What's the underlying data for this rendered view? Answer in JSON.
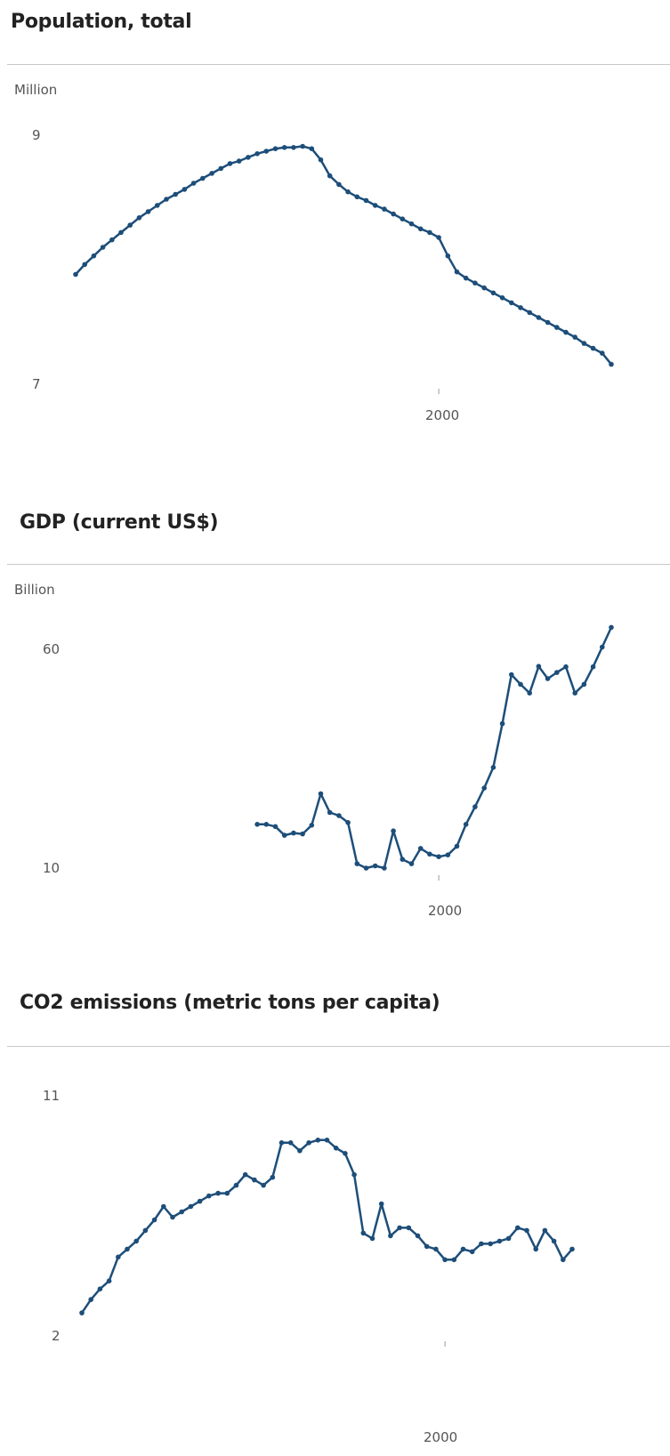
{
  "chart_data": [
    {
      "type": "line",
      "title": "Population, total",
      "unit": "Million",
      "x": [
        1960,
        1961,
        1962,
        1963,
        1964,
        1965,
        1966,
        1967,
        1968,
        1969,
        1970,
        1971,
        1972,
        1973,
        1974,
        1975,
        1976,
        1977,
        1978,
        1979,
        1980,
        1981,
        1982,
        1983,
        1984,
        1985,
        1986,
        1987,
        1988,
        1989,
        1990,
        1991,
        1992,
        1993,
        1994,
        1995,
        1996,
        1997,
        1998,
        1999,
        2000,
        2001,
        2002,
        2003,
        2004,
        2005,
        2006,
        2007,
        2008,
        2009,
        2010,
        2011,
        2012,
        2013,
        2014,
        2015,
        2016,
        2017,
        2018,
        2019
      ],
      "values": [
        7.87,
        7.95,
        8.02,
        8.09,
        8.15,
        8.21,
        8.27,
        8.33,
        8.38,
        8.43,
        8.48,
        8.52,
        8.56,
        8.61,
        8.65,
        8.69,
        8.73,
        8.77,
        8.79,
        8.82,
        8.85,
        8.87,
        8.89,
        8.9,
        8.9,
        8.91,
        8.89,
        8.8,
        8.67,
        8.6,
        8.54,
        8.5,
        8.47,
        8.43,
        8.4,
        8.36,
        8.32,
        8.28,
        8.24,
        8.21,
        8.17,
        8.02,
        7.89,
        7.84,
        7.8,
        7.76,
        7.72,
        7.68,
        7.64,
        7.6,
        7.56,
        7.52,
        7.48,
        7.44,
        7.4,
        7.36,
        7.31,
        7.27,
        7.23,
        7.14
      ],
      "yticks": [
        "9",
        "7"
      ],
      "xticks": [
        "2000"
      ],
      "ylim": [
        7,
        9
      ]
    },
    {
      "type": "line",
      "title": "GDP (current US$)",
      "unit": "Billion",
      "x": [
        1980,
        1981,
        1982,
        1983,
        1984,
        1985,
        1986,
        1987,
        1988,
        1989,
        1990,
        1991,
        1992,
        1993,
        1994,
        1995,
        1996,
        1997,
        1998,
        1999,
        2000,
        2001,
        2002,
        2003,
        2004,
        2005,
        2006,
        2007,
        2008,
        2009,
        2010,
        2011,
        2012,
        2013,
        2014,
        2015,
        2016,
        2017,
        2018,
        2019
      ],
      "values": [
        20.0,
        20.0,
        19.5,
        17.5,
        18.0,
        17.8,
        19.8,
        27.0,
        22.7,
        22.0,
        20.4,
        11.0,
        10.0,
        10.5,
        10.0,
        18.5,
        12.0,
        11.0,
        14.5,
        13.2,
        12.6,
        13.0,
        15.0,
        20.0,
        24.0,
        28.3,
        33.0,
        43.0,
        54.2,
        52.0,
        50.0,
        56.1,
        53.3,
        54.7,
        56.0,
        50.0,
        52.0,
        56.0,
        60.5,
        65.0
      ],
      "yticks": [
        "60",
        "10"
      ],
      "xticks": [
        "2000"
      ],
      "ylim": [
        10,
        60
      ]
    },
    {
      "type": "line",
      "title": "CO2 emissions (metric tons per capita)",
      "x": [
        1960,
        1961,
        1962,
        1963,
        1964,
        1965,
        1966,
        1967,
        1968,
        1969,
        1970,
        1971,
        1972,
        1973,
        1974,
        1975,
        1976,
        1977,
        1978,
        1979,
        1980,
        1981,
        1982,
        1983,
        1984,
        1985,
        1986,
        1987,
        1988,
        1989,
        1990,
        1991,
        1992,
        1993,
        1994,
        1995,
        1996,
        1997,
        1998,
        1999,
        2000,
        2001,
        2002,
        2003,
        2004,
        2005,
        2006,
        2007,
        2008,
        2009,
        2010,
        2011,
        2012,
        2013,
        2014
      ],
      "values": [
        2.8,
        3.3,
        3.7,
        4.0,
        4.9,
        5.2,
        5.5,
        5.9,
        6.3,
        6.8,
        6.4,
        6.6,
        6.8,
        7.0,
        7.2,
        7.3,
        7.3,
        7.6,
        8.0,
        7.8,
        7.6,
        7.9,
        9.2,
        9.2,
        8.9,
        9.2,
        9.3,
        9.3,
        9.0,
        8.8,
        8.0,
        5.8,
        5.6,
        6.9,
        5.7,
        6.0,
        6.0,
        5.7,
        5.3,
        5.2,
        4.8,
        4.8,
        5.2,
        5.1,
        5.4,
        5.4,
        5.5,
        5.6,
        6.0,
        5.9,
        5.2,
        5.9,
        5.5,
        4.8,
        5.2
      ],
      "yticks": [
        "11",
        "2"
      ],
      "xticks": [
        "2000"
      ],
      "ylim": [
        2,
        11
      ]
    }
  ],
  "colors": {
    "line": "#1d4e79",
    "divider": "#c8c8c8",
    "axis_text": "#555555",
    "title": "#222222"
  }
}
